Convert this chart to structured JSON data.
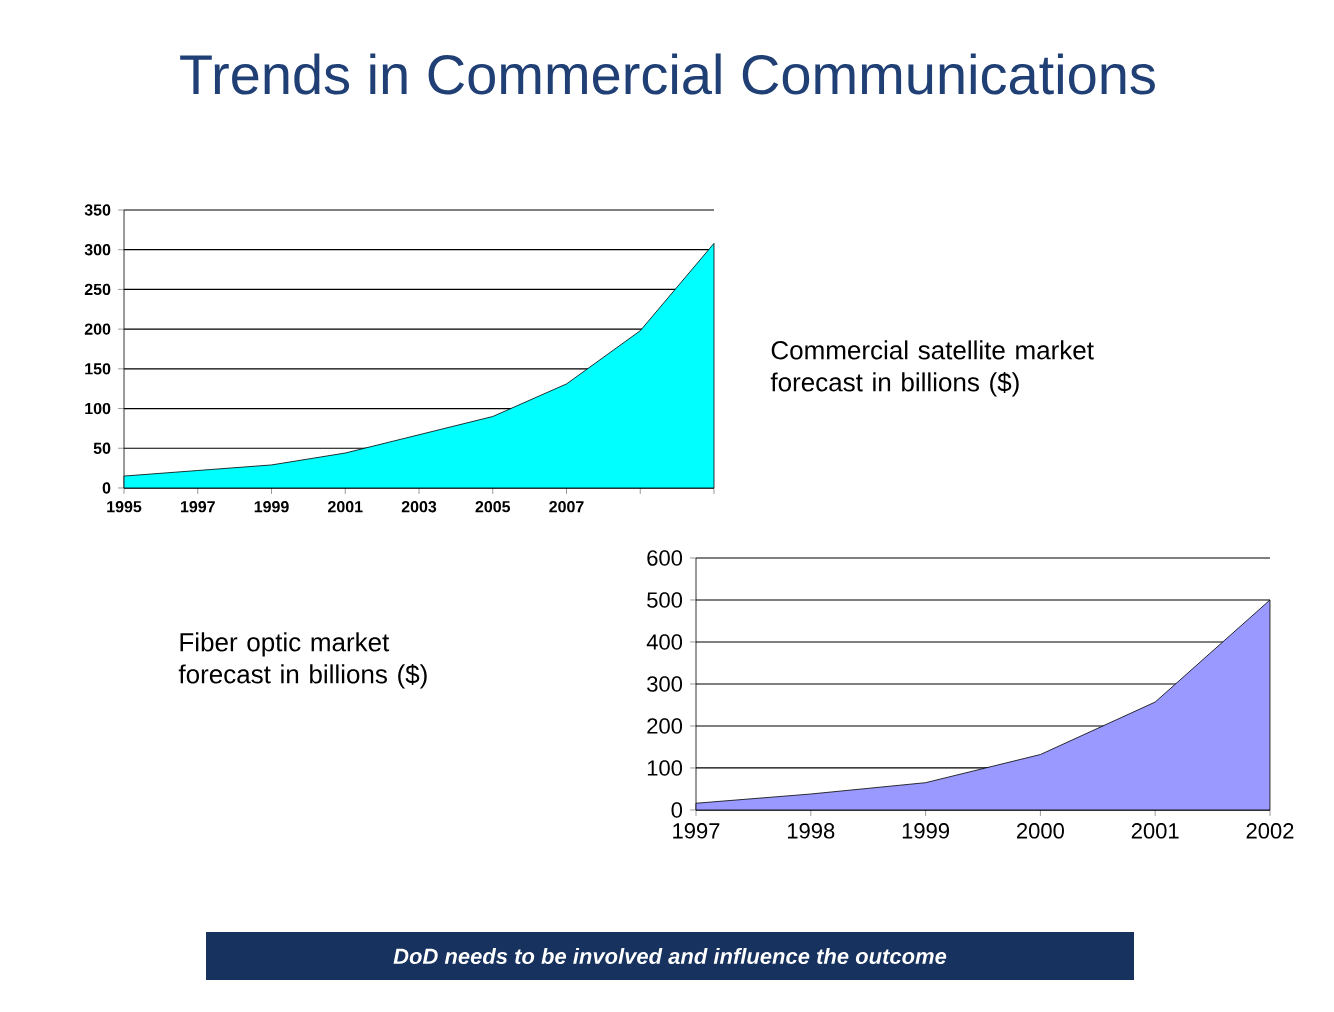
{
  "chart_data": [
    {
      "type": "area",
      "title": "Trends in Commercial Communications",
      "categories": [
        "1995",
        "1997",
        "1999",
        "2001",
        "2003",
        "2005",
        "2007",
        null,
        null
      ],
      "values": [
        15,
        22,
        29,
        44,
        67,
        90,
        131,
        198,
        308
      ],
      "color": "#00ffff",
      "ylim": [
        0,
        350
      ],
      "yticks": [
        0,
        50,
        100,
        150,
        200,
        250,
        300,
        350
      ],
      "grid": "y"
    },
    {
      "type": "other",
      "annotations": [
        "Commercial satellite market forecast in billions ($)"
      ]
    },
    {
      "type": "other",
      "annotations": [
        "Fiber optic market forecast in billions ($)"
      ]
    },
    {
      "type": "area",
      "categories": [
        "1997",
        "1998",
        "1999",
        "2000",
        "2001",
        "2002"
      ],
      "values": [
        16,
        38,
        65,
        132,
        257,
        500
      ],
      "color": "#9999ff",
      "ylim": [
        0,
        600
      ],
      "yticks": [
        0,
        100,
        200,
        300,
        400,
        500,
        600
      ],
      "grid": "y",
      "annotations": [
        "DoD needs to be involved and influence the outcome"
      ]
    }
  ]
}
